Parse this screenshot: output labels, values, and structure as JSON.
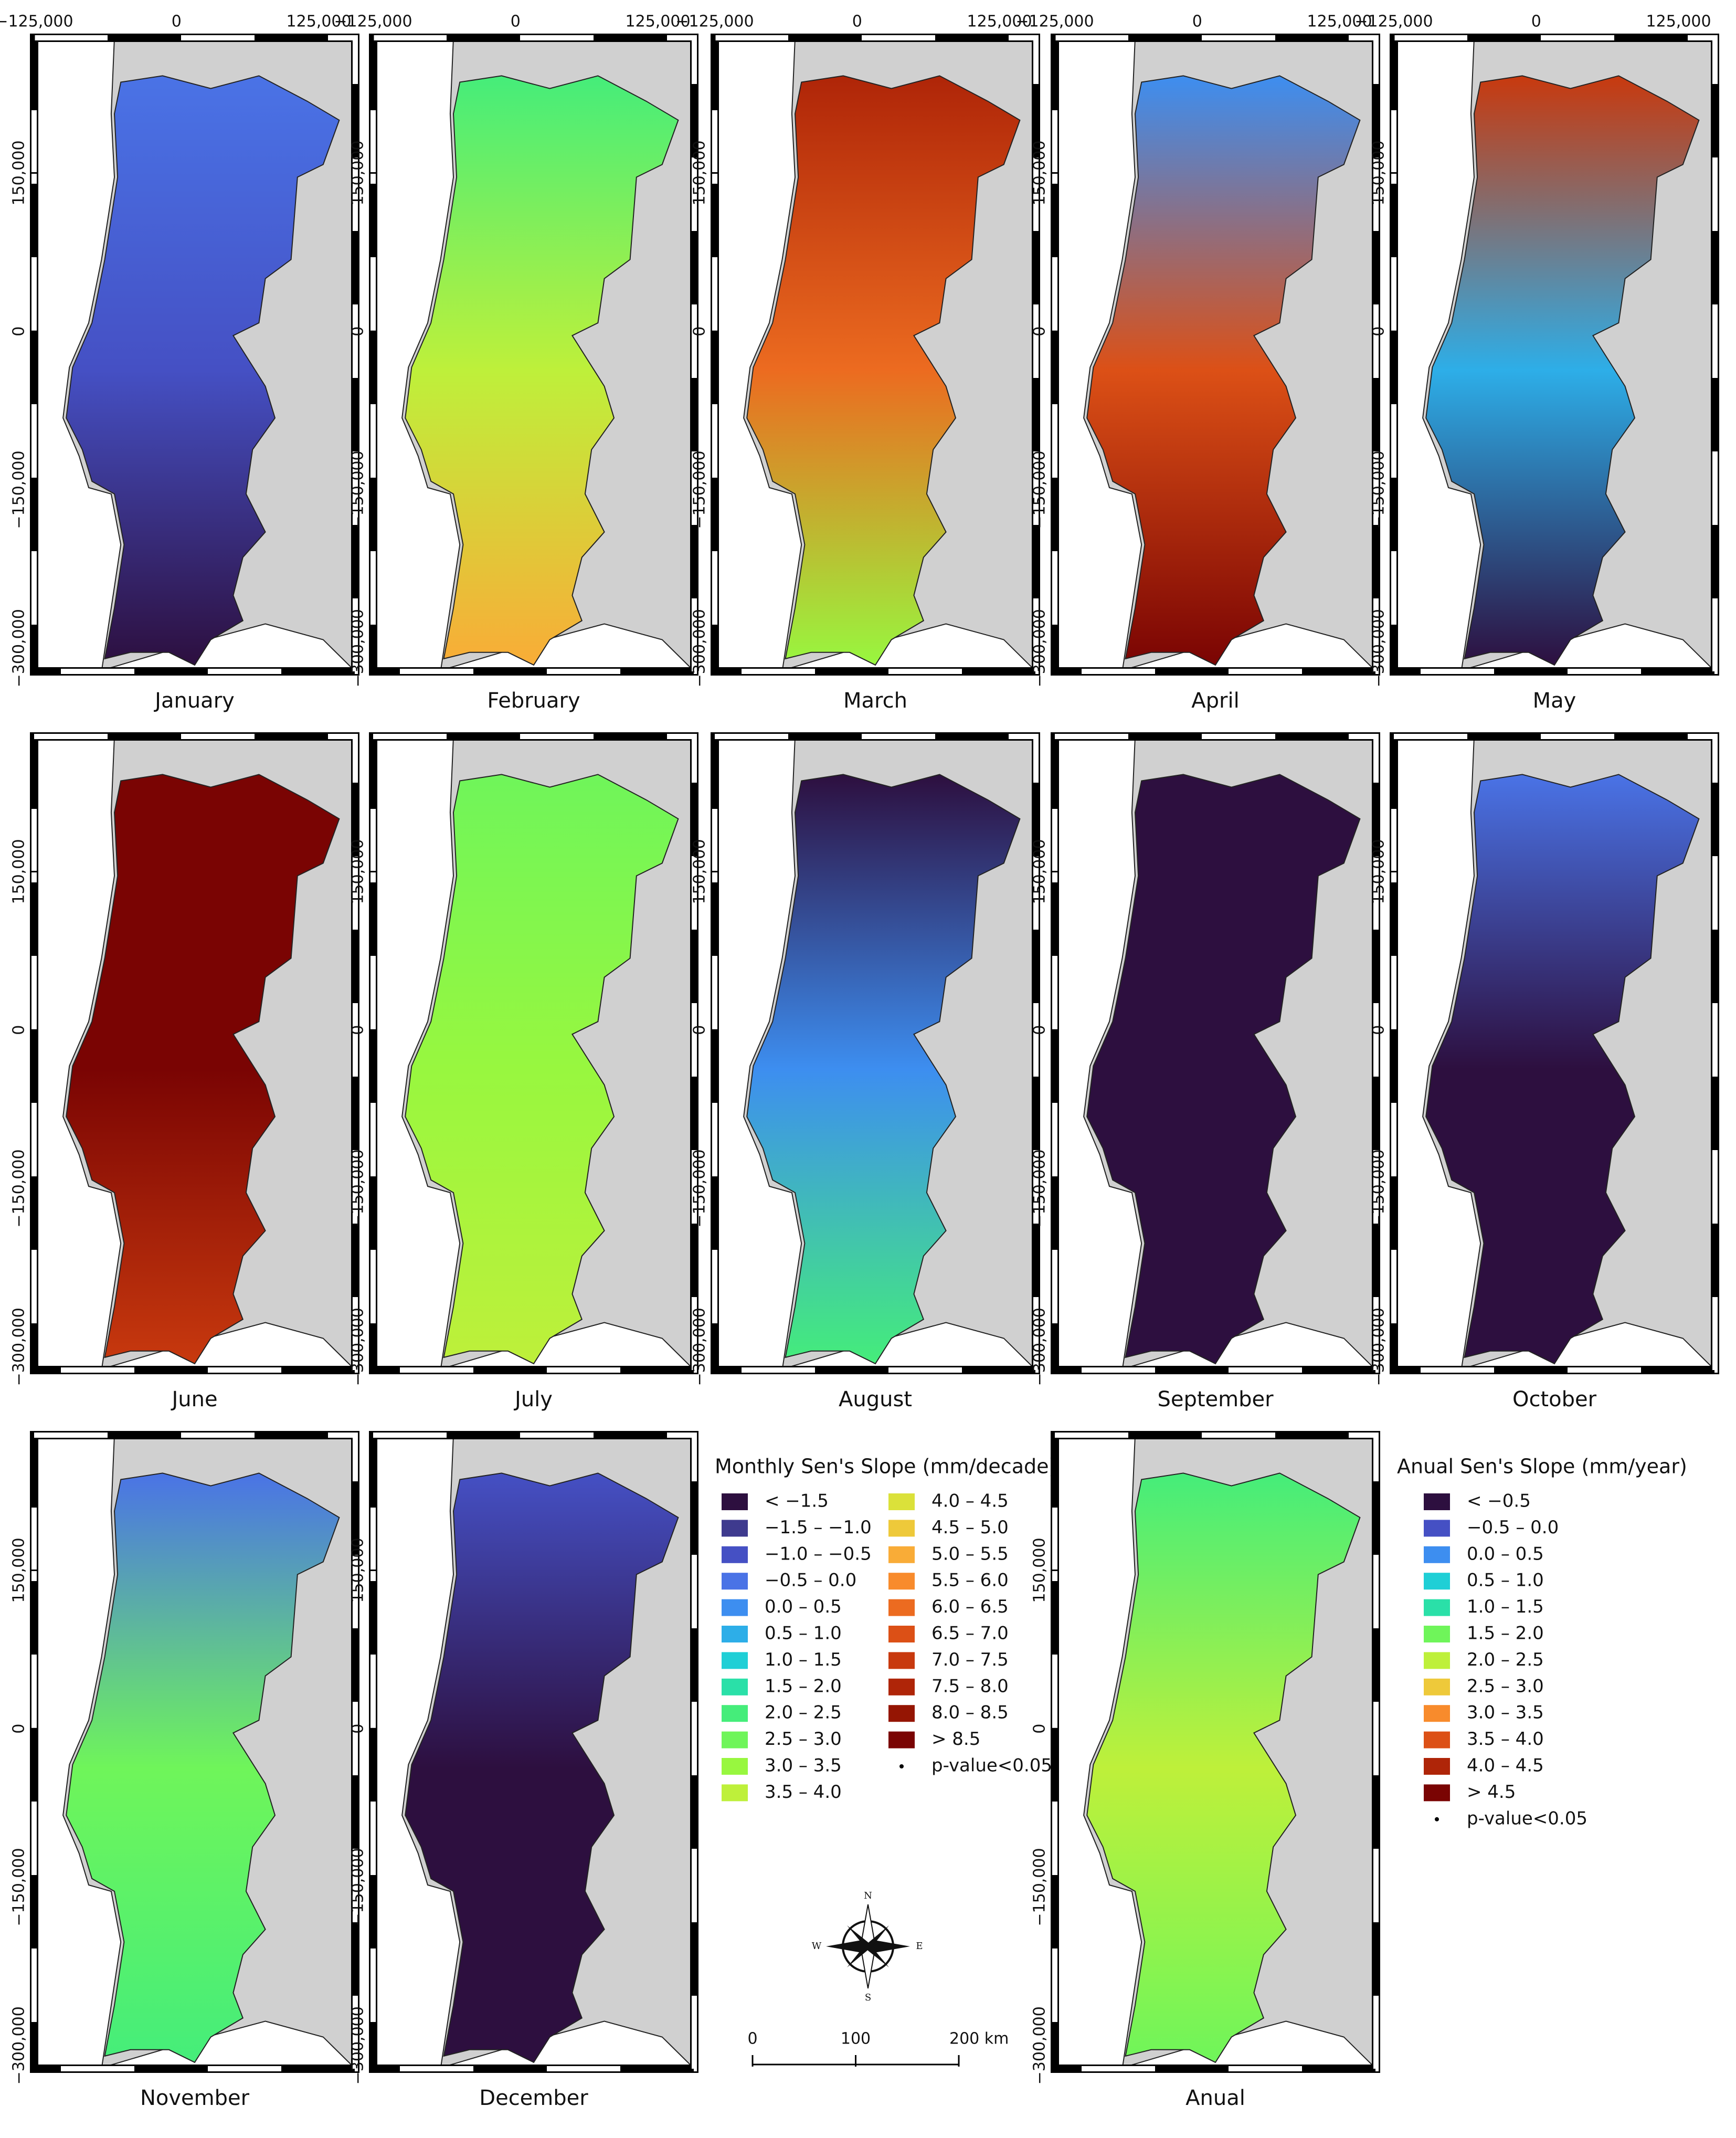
{
  "map": {
    "xlim": [
      -125000,
      157000
    ],
    "ylim": [
      -322000,
      278000
    ],
    "x_ticks": [
      {
        "value": -125000,
        "label": "−125,000"
      },
      0,
      {
        "value": 125000,
        "label": "125,000"
      }
    ],
    "y_ticks": [
      {
        "value": 150000,
        "label": "150,000"
      },
      0,
      {
        "value": -150000,
        "label": "−150,000"
      },
      {
        "value": -300000,
        "label": "−300,000"
      }
    ],
    "panels": [
      {
        "label": "January",
        "colors": [
          "#4a73e6",
          "#4550c4",
          "#2d0f3f"
        ]
      },
      {
        "label": "February",
        "colors": [
          "#45ed7a",
          "#bef03a",
          "#f9ac37"
        ]
      },
      {
        "label": "March",
        "colors": [
          "#af2508",
          "#ec6b20",
          "#98f73f"
        ]
      },
      {
        "label": "April",
        "colors": [
          "#3d8ef0",
          "#dc5016",
          "#7a0403"
        ]
      },
      {
        "label": "May",
        "colors": [
          "#c8390e",
          "#2daee8",
          "#2d0f3f"
        ]
      },
      {
        "label": "June",
        "colors": [
          "#7a0403",
          "#7a0403",
          "#c8390e"
        ]
      },
      {
        "label": "July",
        "colors": [
          "#6ff55a",
          "#98f73f",
          "#bef03a"
        ]
      },
      {
        "label": "August",
        "colors": [
          "#2d0f3f",
          "#3d8ef0",
          "#45ed7a"
        ]
      },
      {
        "label": "September",
        "colors": [
          "#2d0f3f",
          "#2d0f3f",
          "#2d0f3f"
        ]
      },
      {
        "label": "October",
        "colors": [
          "#4a73e6",
          "#2d0f3f",
          "#2d0f3f"
        ]
      },
      {
        "label": "November",
        "colors": [
          "#4a73e6",
          "#6ff55a",
          "#45ed7a"
        ]
      },
      {
        "label": "December",
        "colors": [
          "#4550c4",
          "#2d0f3f",
          "#2d0f3f"
        ]
      },
      {
        "label": "Anual",
        "colors": [
          "#45ed7a",
          "#bef03a",
          "#6ff55a"
        ]
      }
    ]
  },
  "monthly_legend": {
    "title": "Monthly Sen's Slope (mm/decade)",
    "items": [
      {
        "label": "< −1.5",
        "color": "#2d0f3f"
      },
      {
        "label": "−1.5 – −1.0",
        "color": "#3e3a8e"
      },
      {
        "label": "−1.0 – −0.5",
        "color": "#4550c4"
      },
      {
        "label": "−0.5 – 0.0",
        "color": "#4a73e6"
      },
      {
        "label": "0.0 – 0.5",
        "color": "#3d8ef0"
      },
      {
        "label": "0.5 – 1.0",
        "color": "#2daee8"
      },
      {
        "label": "1.0 – 1.5",
        "color": "#1fcfd6"
      },
      {
        "label": "1.5 – 2.0",
        "color": "#2ae0a8"
      },
      {
        "label": "2.0 – 2.5",
        "color": "#45ed7a"
      },
      {
        "label": "2.5 – 3.0",
        "color": "#6ff55a"
      },
      {
        "label": "3.0 – 3.5",
        "color": "#98f73f"
      },
      {
        "label": "3.5 – 4.0",
        "color": "#bef03a"
      },
      {
        "label": "4.0 – 4.5",
        "color": "#dbe13a"
      },
      {
        "label": "4.5 – 5.0",
        "color": "#eec93a"
      },
      {
        "label": "5.0 – 5.5",
        "color": "#f9ac37"
      },
      {
        "label": "5.5 – 6.0",
        "color": "#f88b2c"
      },
      {
        "label": "6.0 – 6.5",
        "color": "#ec6b20"
      },
      {
        "label": "6.5 – 7.0",
        "color": "#dc5016"
      },
      {
        "label": "7.0 – 7.5",
        "color": "#c8390e"
      },
      {
        "label": "7.5 – 8.0",
        "color": "#af2508"
      },
      {
        "label": "8.0 – 8.5",
        "color": "#951503"
      },
      {
        "label": "> 8.5",
        "color": "#7a0403"
      }
    ],
    "pvalue": "p-value<0.05"
  },
  "annual_legend": {
    "title": "Anual Sen's Slope (mm/year)",
    "items": [
      {
        "label": "< −0.5",
        "color": "#2d0f3f"
      },
      {
        "label": "−0.5 – 0.0",
        "color": "#4550c4"
      },
      {
        "label": "0.0 – 0.5",
        "color": "#3d8ef0"
      },
      {
        "label": "0.5 – 1.0",
        "color": "#1fcfd6"
      },
      {
        "label": "1.0 – 1.5",
        "color": "#2ae0a8"
      },
      {
        "label": "1.5 – 2.0",
        "color": "#6ff55a"
      },
      {
        "label": "2.0 – 2.5",
        "color": "#bef03a"
      },
      {
        "label": "2.5 – 3.0",
        "color": "#eec93a"
      },
      {
        "label": "3.0 – 3.5",
        "color": "#f88b2c"
      },
      {
        "label": "3.5 – 4.0",
        "color": "#dc5016"
      },
      {
        "label": "4.0 – 4.5",
        "color": "#af2508"
      },
      {
        "label": "> 4.5",
        "color": "#7a0403"
      }
    ],
    "pvalue": "p-value<0.05"
  },
  "compass": {
    "n": "N",
    "e": "E",
    "s": "S",
    "w": "W"
  },
  "scale_bar": {
    "ticks": [
      0,
      100,
      {
        "value": 200,
        "label": "200 km"
      }
    ]
  }
}
